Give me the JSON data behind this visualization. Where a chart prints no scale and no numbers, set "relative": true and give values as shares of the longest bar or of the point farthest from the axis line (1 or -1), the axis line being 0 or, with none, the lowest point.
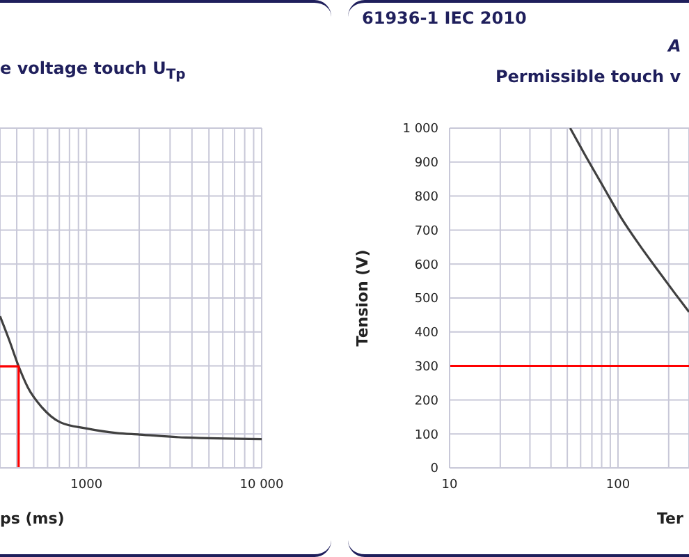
{
  "chart_data": [
    {
      "type": "line",
      "title": "e voltage touch U$_{Tp}$",
      "xlabel": "ps (ms)",
      "relative": true,
      "log": "x",
      "xlim": [
        321,
        10000
      ],
      "xticks": [
        {
          "value": 400,
          "label": null
        },
        {
          "value": 500,
          "label": null
        },
        {
          "value": 600,
          "label": null
        },
        {
          "value": 700,
          "label": null
        },
        {
          "value": 800,
          "label": null
        },
        {
          "value": 900,
          "label": null
        },
        1000,
        {
          "value": 2000,
          "label": null
        },
        {
          "value": 3000,
          "label": null
        },
        {
          "value": 4000,
          "label": null
        },
        {
          "value": 5000,
          "label": null
        },
        {
          "value": 6000,
          "label": null
        },
        {
          "value": 7000,
          "label": null
        },
        {
          "value": 8000,
          "label": null
        },
        {
          "value": 9000,
          "label": null
        },
        {
          "value": 10000,
          "label": "10 000"
        }
      ],
      "grid": true,
      "tick_labels": "x",
      "series": [
        {
          "color": "#404040",
          "x": [
            321,
            363,
            410,
            463,
            556,
            710,
            1000,
            1479,
            2006,
            3695,
            10000
          ],
          "values": [
            1,
            0.84,
            0.67,
            0.53,
            0.4,
            0.3,
            0.26,
            0.23,
            0.22,
            0.2,
            0.19
          ]
        },
        {
          "color": "#ff0000",
          "x": [
            321,
            410,
            410
          ],
          "values": [
            0.67,
            0.67,
            0
          ]
        }
      ]
    },
    {
      "type": "line",
      "title": "Permissible touch v",
      "annotations": [
        "61936-1 IEC 2010",
        "A"
      ],
      "ylabel": "Tension (V)",
      "xlabel": "Ter",
      "log": "x",
      "xlim": [
        10,
        264
      ],
      "xticks": [
        10,
        {
          "value": 20,
          "label": null
        },
        {
          "value": 30,
          "label": null
        },
        {
          "value": 40,
          "label": null
        },
        {
          "value": 50,
          "label": null
        },
        {
          "value": 60,
          "label": null
        },
        {
          "value": 70,
          "label": null
        },
        {
          "value": 80,
          "label": null
        },
        {
          "value": 90,
          "label": null
        },
        100,
        {
          "value": 200,
          "label": null
        }
      ],
      "ylim": [
        0,
        1000
      ],
      "yticks": [
        0,
        100,
        200,
        300,
        400,
        500,
        600,
        700,
        800,
        900,
        {
          "value": 1000,
          "label": "1 000"
        }
      ],
      "grid": true,
      "ref_lines": [
        {
          "axis": "y",
          "value": 300,
          "color": "#ff0000"
        }
      ],
      "series": [
        {
          "color": "#404040",
          "x": [
            52,
            63.7,
            81.7,
            104.5,
            133.7,
            171,
            219,
            264
          ],
          "values": [
            1000,
            921,
            828,
            736,
            657,
            584,
            512,
            459
          ]
        }
      ]
    }
  ]
}
